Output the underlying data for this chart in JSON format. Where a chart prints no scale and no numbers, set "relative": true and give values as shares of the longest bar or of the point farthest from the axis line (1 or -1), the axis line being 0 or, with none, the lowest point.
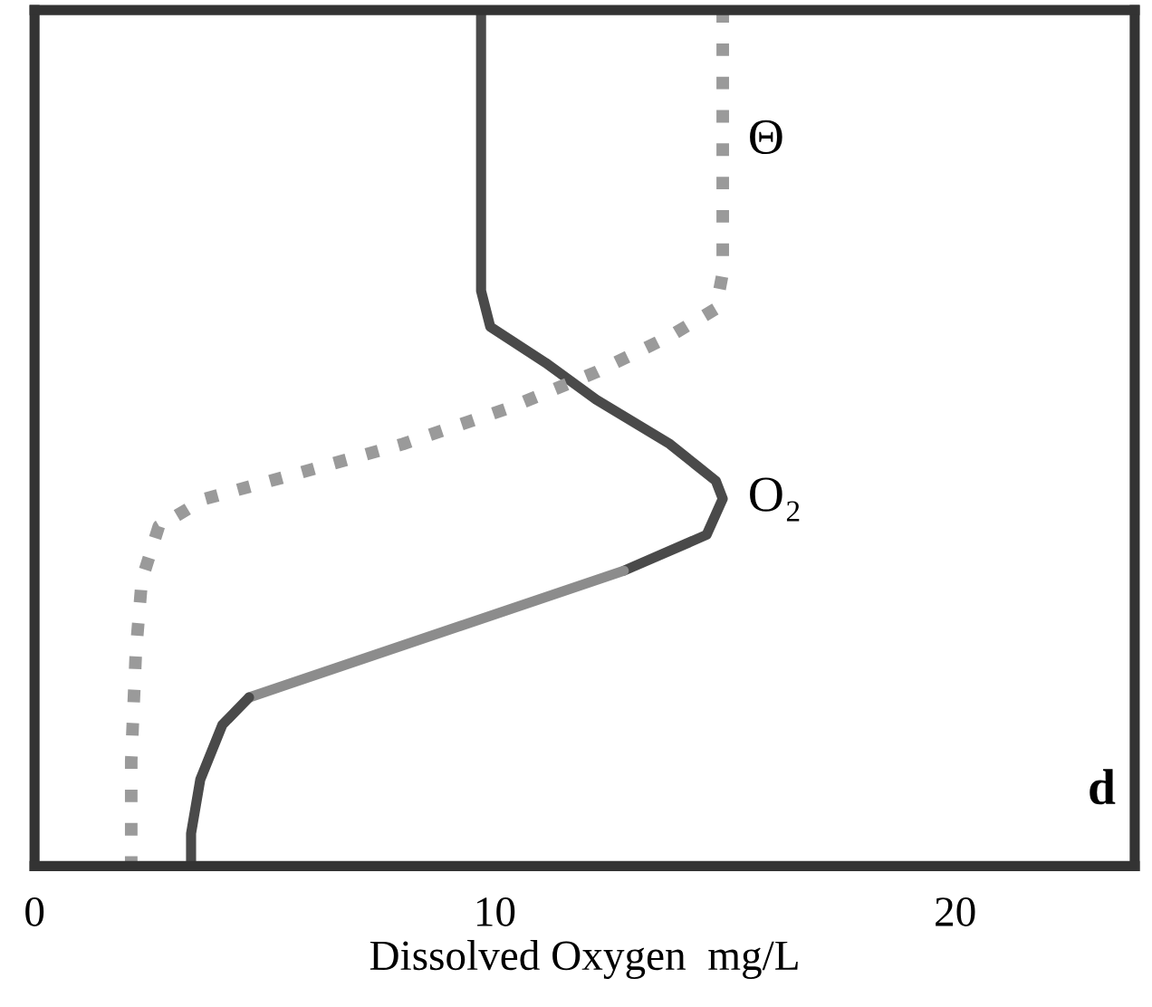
{
  "chart_data": {
    "type": "line",
    "xlabel": "Dissolved Oxygen  mg/L",
    "ylabel": "d",
    "relative": true,
    "xlim": [
      0,
      23.9
    ],
    "xticks": [
      0,
      10,
      20
    ],
    "grid": false,
    "tick_labels": "x",
    "series": [
      {
        "name": "O₂",
        "color": "#4a4a4a",
        "line_style": "solid",
        "x": [
          9.7,
          9.7,
          9.9,
          11.1,
          12.2,
          13.8,
          14.8,
          14.95,
          14.6,
          12.8
        ],
        "values": [
          1,
          0.672,
          0.63,
          0.588,
          0.545,
          0.493,
          0.45,
          0.429,
          0.387,
          0.345
        ]
      },
      {
        "color": "#8c8c8c",
        "line_style": "solid",
        "x": [
          12.8,
          4.66
        ],
        "values": [
          0.345,
          0.197
        ]
      },
      {
        "color": "#4a4a4a",
        "line_style": "solid",
        "x": [
          4.66,
          4.08,
          3.6,
          3.4,
          3.4
        ],
        "values": [
          0.197,
          0.165,
          0.101,
          0.038,
          0
        ]
      },
      {
        "name": "Θ",
        "color": "#9a9a9a",
        "line_style": "dotted",
        "x": [
          14.95,
          14.95,
          14.8,
          13.8,
          12.2,
          10.3,
          8.0,
          5.6,
          3.7,
          2.7,
          2.33,
          2.2,
          2.1,
          2.1
        ],
        "values": [
          1,
          0.693,
          0.651,
          0.619,
          0.577,
          0.535,
          0.493,
          0.457,
          0.429,
          0.397,
          0.334,
          0.249,
          0.123,
          0
        ]
      }
    ]
  }
}
